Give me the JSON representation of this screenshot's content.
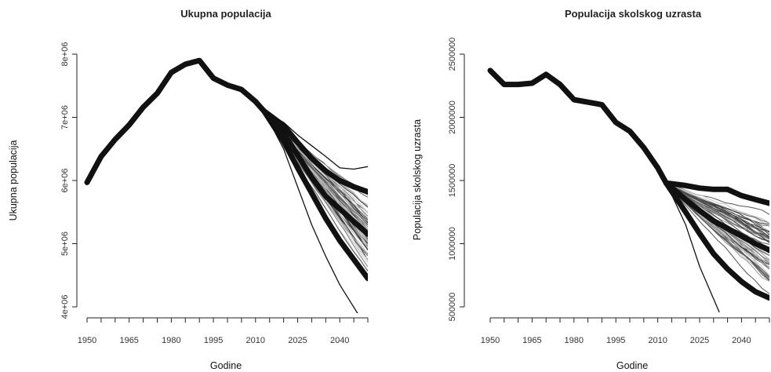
{
  "chart_data": [
    {
      "type": "line",
      "title": "Ukupna populacija",
      "xlabel": "Godine",
      "ylabel": "Ukupna populacija",
      "xlim": [
        1950,
        2050
      ],
      "ylim": [
        4000000,
        8000000
      ],
      "x_ticks": [
        1950,
        1965,
        1980,
        1995,
        2010,
        2025,
        2040
      ],
      "y_ticks": [
        4000000,
        5000000,
        6000000,
        7000000,
        8000000
      ],
      "y_tick_labels": [
        "4e+06",
        "5e+06",
        "6e+06",
        "7e+06",
        "8e+06"
      ],
      "grid": false,
      "projection_start": 2013,
      "thin_line_count": 60,
      "thin_spread_end": [
        4100000,
        6200000
      ],
      "thin_center_end": 5200000,
      "series": [
        {
          "style": "historical",
          "x": [
            1950,
            1955,
            1960,
            1965,
            1970,
            1975,
            1980,
            1985,
            1990,
            1995,
            2000,
            2005,
            2010,
            2013
          ],
          "y": [
            5970000,
            6380000,
            6650000,
            6880000,
            7160000,
            7380000,
            7710000,
            7840000,
            7900000,
            7620000,
            7510000,
            7440000,
            7250000,
            7100000
          ]
        },
        {
          "style": "projection-thick",
          "x": [
            2013,
            2020,
            2025,
            2030,
            2035,
            2040,
            2045,
            2050
          ],
          "y": [
            7100000,
            6870000,
            6600000,
            6350000,
            6150000,
            6000000,
            5900000,
            5820000
          ]
        },
        {
          "style": "projection-thick",
          "x": [
            2013,
            2020,
            2025,
            2030,
            2035,
            2040,
            2045,
            2050
          ],
          "y": [
            7100000,
            6750000,
            6400000,
            6050000,
            5750000,
            5550000,
            5350000,
            5150000
          ]
        },
        {
          "style": "projection-thick",
          "x": [
            2013,
            2020,
            2025,
            2030,
            2035,
            2040,
            2045,
            2050
          ],
          "y": [
            7100000,
            6620000,
            6200000,
            5800000,
            5400000,
            5050000,
            4750000,
            4450000
          ]
        },
        {
          "style": "projection-thin-extreme",
          "x": [
            2013,
            2020,
            2025,
            2030,
            2035,
            2040,
            2047
          ],
          "y": [
            7100000,
            6500000,
            5900000,
            5300000,
            4800000,
            4350000,
            3850000
          ]
        },
        {
          "style": "projection-thin-extreme",
          "x": [
            2013,
            2020,
            2025,
            2030,
            2035,
            2040,
            2045,
            2050
          ],
          "y": [
            7100000,
            6920000,
            6720000,
            6550000,
            6380000,
            6200000,
            6180000,
            6220000
          ]
        }
      ]
    },
    {
      "type": "line",
      "title": "Populacija skolskog uzrasta",
      "xlabel": "Godine",
      "ylabel": "Populacija skolskog uzrasta",
      "xlim": [
        1950,
        2050
      ],
      "ylim": [
        500000,
        2500000
      ],
      "x_ticks": [
        1950,
        1965,
        1980,
        1995,
        2010,
        2025,
        2040
      ],
      "y_ticks": [
        500000,
        1000000,
        1500000,
        2000000,
        2500000
      ],
      "y_tick_labels": [
        "500000",
        "1000000",
        "1500000",
        "2000000",
        "2500000"
      ],
      "grid": false,
      "projection_start": 2013,
      "thin_line_count": 60,
      "thin_spread_end": [
        400000,
        1500000
      ],
      "thin_center_end": 950000,
      "series": [
        {
          "style": "historical",
          "x": [
            1950,
            1955,
            1960,
            1965,
            1970,
            1975,
            1980,
            1985,
            1990,
            1995,
            2000,
            2005,
            2010,
            2013
          ],
          "y": [
            2370000,
            2260000,
            2260000,
            2270000,
            2340000,
            2260000,
            2140000,
            2120000,
            2100000,
            1960000,
            1890000,
            1760000,
            1600000,
            1480000
          ]
        },
        {
          "style": "projection-thick",
          "x": [
            2013,
            2020,
            2025,
            2030,
            2035,
            2040,
            2045,
            2050
          ],
          "y": [
            1480000,
            1460000,
            1440000,
            1430000,
            1430000,
            1380000,
            1350000,
            1320000
          ]
        },
        {
          "style": "projection-thick",
          "x": [
            2013,
            2020,
            2025,
            2030,
            2035,
            2040,
            2045,
            2050
          ],
          "y": [
            1480000,
            1350000,
            1260000,
            1180000,
            1120000,
            1060000,
            1000000,
            950000
          ]
        },
        {
          "style": "projection-thick",
          "x": [
            2013,
            2020,
            2025,
            2030,
            2035,
            2040,
            2045,
            2050
          ],
          "y": [
            1480000,
            1250000,
            1080000,
            920000,
            800000,
            700000,
            620000,
            570000
          ]
        },
        {
          "style": "projection-thin-extreme",
          "x": [
            2013,
            2020,
            2025,
            2032
          ],
          "y": [
            1480000,
            1150000,
            820000,
            460000
          ]
        }
      ]
    }
  ]
}
